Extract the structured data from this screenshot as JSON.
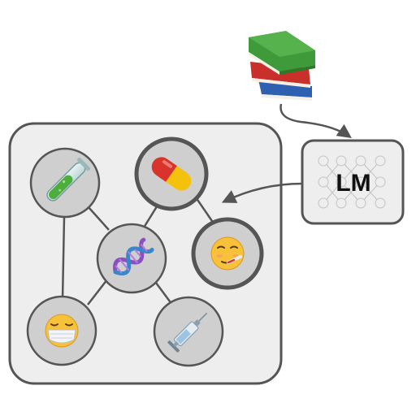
{
  "lm_box": {
    "label": "LM"
  },
  "graph": {
    "nodes": [
      {
        "id": "test-tube",
        "icon": "test-tube-icon",
        "highlighted": false
      },
      {
        "id": "pill",
        "icon": "pill-icon",
        "highlighted": true
      },
      {
        "id": "dna",
        "icon": "dna-icon",
        "highlighted": false
      },
      {
        "id": "sick-face",
        "icon": "thermometer-face-icon",
        "highlighted": true
      },
      {
        "id": "mask-face",
        "icon": "medical-mask-face-icon",
        "highlighted": false
      },
      {
        "id": "syringe",
        "icon": "syringe-icon",
        "highlighted": false
      }
    ],
    "edges": [
      [
        "test-tube",
        "dna"
      ],
      [
        "test-tube",
        "mask-face"
      ],
      [
        "pill",
        "dna"
      ],
      [
        "pill",
        "sick-face"
      ],
      [
        "dna",
        "mask-face"
      ],
      [
        "dna",
        "syringe"
      ]
    ]
  },
  "colors": {
    "node_fill": "#cfcfcf",
    "panel_fill": "#eeeeee",
    "stroke": "#555555",
    "book_green": "#3f9a3a",
    "book_red": "#c9302c",
    "book_blue": "#2f5fb0",
    "pill_red": "#d9342b",
    "pill_yellow": "#f4c20d",
    "dna_purple": "#8a4fc0",
    "face_yellow": "#f7c13a"
  }
}
